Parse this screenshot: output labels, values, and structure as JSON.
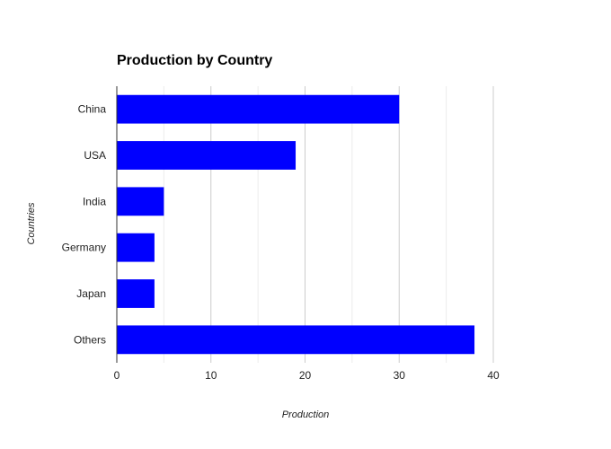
{
  "chart_data": {
    "type": "bar",
    "orientation": "horizontal",
    "title": "Production by Country",
    "xlabel": "Production",
    "ylabel": "Countries",
    "categories": [
      "China",
      "USA",
      "India",
      "Germany",
      "Japan",
      "Others"
    ],
    "values": [
      30,
      19,
      5,
      4,
      4,
      38
    ],
    "xlim": [
      0,
      40
    ],
    "xticks": [
      0,
      10,
      20,
      30,
      40
    ],
    "grid": true,
    "legend": "none",
    "bar_color": "#0000ff",
    "gridline_color": "#cccccc",
    "minor_gridline_color": "#ebebeb",
    "axis_color": "#333333"
  }
}
